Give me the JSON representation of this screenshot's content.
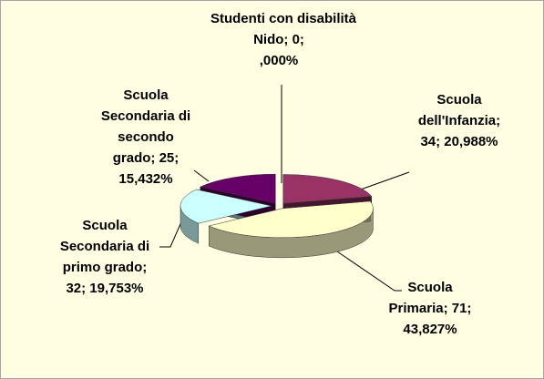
{
  "chart_data": {
    "type": "pie3d",
    "title": "Studenti con disabilità",
    "categories": [
      "Nido",
      "Scuola dell'Infanzia",
      "Scuola Primaria",
      "Scuola Secondaria di primo grado",
      "Scuola Secondaria di secondo grado"
    ],
    "values": [
      0,
      34,
      71,
      32,
      25
    ],
    "value_labels": [
      "Nido; 0; ,000%",
      "Scuola dell'Infanzia; 34; 20,988%",
      "Scuola Primaria; 71; 43,827%",
      "Scuola Secondaria di primo grado; 32; 19,753%",
      "Scuola Secondaria di secondo grado; 25; 15,432%"
    ],
    "colors": [
      "#7f7fff",
      "#993366",
      "#ffffcc",
      "#ccffff",
      "#660066"
    ]
  }
}
